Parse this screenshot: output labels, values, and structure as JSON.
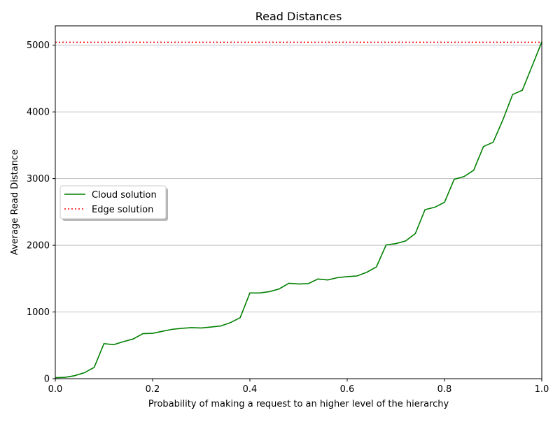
{
  "chart_data": {
    "type": "line",
    "title": "Read Distances",
    "xlabel": "Probability of making a request to an higher level of the hierarchy",
    "ylabel": "Average Read Distance",
    "xlim": [
      0,
      1
    ],
    "ylim": [
      0,
      5290
    ],
    "xticks": [
      0,
      0.2,
      0.4,
      0.6,
      0.8,
      1.0
    ],
    "xtick_labels": [
      "0.0",
      "0.2",
      "0.4",
      "0.6",
      "0.8",
      "1.0"
    ],
    "yticks": [
      0,
      1000,
      2000,
      3000,
      4000,
      5000
    ],
    "ytick_labels": [
      "0",
      "1000",
      "2000",
      "3000",
      "4000",
      "5000"
    ],
    "grid": "y-axis horizontal lines",
    "legend_position": "center-left",
    "series": [
      {
        "name": "Cloud solution",
        "color": "#008000",
        "style": "solid",
        "x": [
          0,
          0.02,
          0.04,
          0.06,
          0.08,
          0.1,
          0.12,
          0.14,
          0.16,
          0.18,
          0.2,
          0.22,
          0.24,
          0.26,
          0.28,
          0.3,
          0.32,
          0.34,
          0.36,
          0.38,
          0.4,
          0.42,
          0.44,
          0.46,
          0.48,
          0.5,
          0.52,
          0.54,
          0.56,
          0.58,
          0.6,
          0.62,
          0.64,
          0.66,
          0.68,
          0.7,
          0.72,
          0.74,
          0.76,
          0.78,
          0.8,
          0.82,
          0.84,
          0.86,
          0.88,
          0.9,
          0.92,
          0.94,
          0.96,
          0.98,
          1.0
        ],
        "y": [
          15,
          20,
          45,
          90,
          170,
          525,
          510,
          555,
          595,
          675,
          680,
          710,
          740,
          755,
          765,
          760,
          775,
          790,
          840,
          915,
          1285,
          1285,
          1305,
          1345,
          1430,
          1420,
          1425,
          1495,
          1480,
          1515,
          1530,
          1540,
          1595,
          1675,
          2005,
          2025,
          2065,
          2175,
          2535,
          2570,
          2645,
          2990,
          3030,
          3125,
          3480,
          3545,
          3880,
          4260,
          4325,
          4685,
          5050
        ]
      },
      {
        "name": "Edge solution",
        "color": "#ff0000",
        "style": "dotted",
        "x": [
          0,
          1.0
        ],
        "y": [
          5045,
          5045
        ]
      }
    ]
  }
}
